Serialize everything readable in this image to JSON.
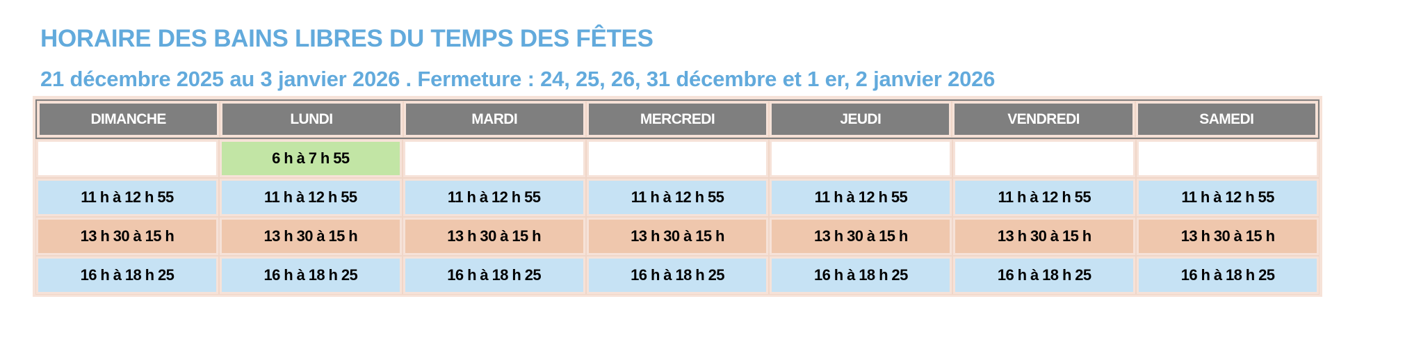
{
  "title": "HORAIRE DES BAINS LIBRES DU TEMPS DES FÊTES",
  "subtitle": "21 décembre 2025 au 3 janvier 2026 . Fermeture : 24, 25, 26, 31 décembre et 1 er, 2 janvier 2026",
  "colors": {
    "title": "#62aadc",
    "header": "#7f7f7f",
    "green": "#c2e5a5",
    "blue": "#c6e2f4",
    "orange": "#efc7ad",
    "border": "#f6e2d8"
  },
  "days": [
    "DIMANCHE",
    "LUNDI",
    "MARDI",
    "MERCREDI",
    "JEUDI",
    "VENDREDI",
    "SAMEDI"
  ],
  "rows": [
    {
      "color": "mixed",
      "cells": [
        "",
        "6 h à 7 h 55",
        "",
        "",
        "",
        "",
        ""
      ]
    },
    {
      "color": "blue",
      "cells": [
        "11 h à 12 h 55",
        "11 h à 12 h 55",
        "11 h à 12 h 55",
        "11 h à 12 h 55",
        "11 h à 12 h 55",
        "11 h à 12 h 55",
        "11 h à 12 h 55"
      ]
    },
    {
      "color": "orange",
      "cells": [
        "13 h 30 à 15 h",
        "13 h 30 à 15 h",
        "13 h 30 à 15 h",
        "13 h 30 à 15 h",
        "13 h 30 à 15 h",
        "13 h 30 à 15 h",
        "13 h 30 à 15 h"
      ]
    },
    {
      "color": "blue",
      "cells": [
        "16 h à 18 h 25",
        "16 h à 18 h 25",
        "16 h à 18 h 25",
        "16 h à 18 h 25",
        "16 h à 18 h 25",
        "16 h à 18 h 25",
        "16 h à 18 h 25"
      ]
    }
  ]
}
